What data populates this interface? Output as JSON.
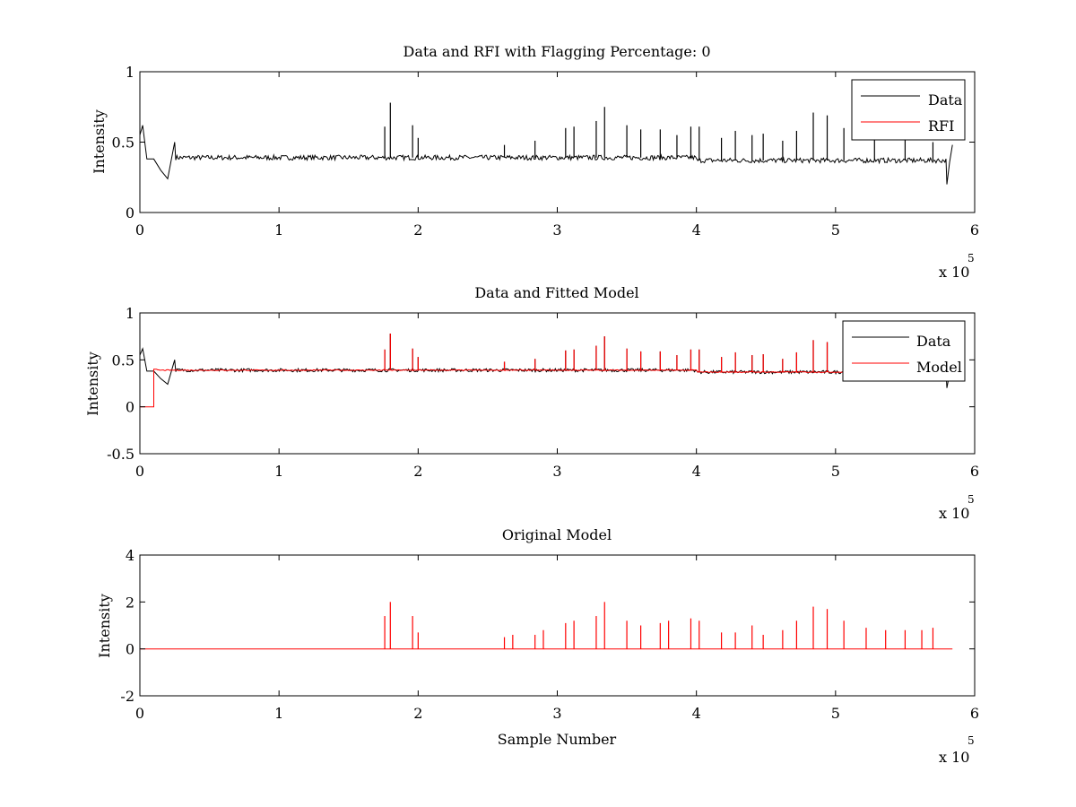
{
  "figure": {
    "background": "#ffffff",
    "axis_color": "#000000"
  },
  "chart_data": [
    {
      "type": "line",
      "title": "Data and RFI with Flagging Percentage: 0",
      "xlabel": "",
      "ylabel": "Intensity",
      "xlim": [
        0,
        600000
      ],
      "ylim": [
        0,
        1
      ],
      "xticks": [
        "0",
        "1",
        "2",
        "3",
        "4",
        "5",
        "6"
      ],
      "yticks": [
        "0",
        "0.5",
        "1"
      ],
      "x_multiplier": {
        "base": "x 10",
        "exponent": "5"
      },
      "legend": {
        "position": "top-right",
        "entries": [
          "Data",
          "RFI"
        ]
      },
      "series": [
        {
          "name": "Data",
          "color": "#000000",
          "baseline": 0.39,
          "x": [
            0,
            2000,
            5000,
            10000,
            15000,
            20000,
            25000,
            580000,
            582000,
            584000
          ],
          "y": [
            0.55,
            0.62,
            0.38,
            0.38,
            0.3,
            0.24,
            0.5,
            0.2,
            0.36,
            0.48
          ],
          "peaks": [
            [
              176000,
              0.61
            ],
            [
              180000,
              0.78
            ],
            [
              196000,
              0.62
            ],
            [
              200000,
              0.53
            ],
            [
              262000,
              0.48
            ],
            [
              284000,
              0.51
            ],
            [
              306000,
              0.6
            ],
            [
              312000,
              0.61
            ],
            [
              328000,
              0.65
            ],
            [
              334000,
              0.75
            ],
            [
              350000,
              0.62
            ],
            [
              360000,
              0.59
            ],
            [
              374000,
              0.59
            ],
            [
              386000,
              0.55
            ],
            [
              396000,
              0.61
            ],
            [
              402000,
              0.61
            ],
            [
              418000,
              0.53
            ],
            [
              428000,
              0.58
            ],
            [
              440000,
              0.55
            ],
            [
              448000,
              0.56
            ],
            [
              462000,
              0.51
            ],
            [
              472000,
              0.58
            ],
            [
              484000,
              0.71
            ],
            [
              494000,
              0.69
            ],
            [
              506000,
              0.6
            ],
            [
              528000,
              0.53
            ],
            [
              550000,
              0.52
            ],
            [
              570000,
              0.5
            ]
          ]
        },
        {
          "name": "RFI",
          "color": "#ff0000",
          "x": [],
          "y": []
        }
      ]
    },
    {
      "type": "line",
      "title": "Data and Fitted Model",
      "xlabel": "",
      "ylabel": "Intensity",
      "xlim": [
        0,
        600000
      ],
      "ylim": [
        -0.5,
        1
      ],
      "xticks": [
        "0",
        "1",
        "2",
        "3",
        "4",
        "5",
        "6"
      ],
      "yticks": [
        "-0.5",
        "0",
        "0.5",
        "1"
      ],
      "x_multiplier": {
        "base": "x 10",
        "exponent": "5"
      },
      "legend": {
        "position": "top-right",
        "entries": [
          "Data",
          "Model"
        ]
      },
      "series": [
        {
          "name": "Data",
          "color": "#000000",
          "baseline": 0.39,
          "x": [
            0,
            2000,
            5000,
            10000,
            15000,
            20000,
            25000,
            580000,
            582000,
            584000
          ],
          "y": [
            0.55,
            0.62,
            0.38,
            0.38,
            0.3,
            0.24,
            0.5,
            0.2,
            0.36,
            0.48
          ],
          "peaks": [
            [
              176000,
              0.61
            ],
            [
              180000,
              0.78
            ],
            [
              196000,
              0.62
            ],
            [
              200000,
              0.53
            ],
            [
              262000,
              0.48
            ],
            [
              284000,
              0.51
            ],
            [
              306000,
              0.6
            ],
            [
              312000,
              0.61
            ],
            [
              328000,
              0.65
            ],
            [
              334000,
              0.75
            ],
            [
              350000,
              0.62
            ],
            [
              360000,
              0.59
            ],
            [
              374000,
              0.59
            ],
            [
              386000,
              0.55
            ],
            [
              396000,
              0.61
            ],
            [
              402000,
              0.61
            ],
            [
              418000,
              0.53
            ],
            [
              428000,
              0.58
            ],
            [
              440000,
              0.55
            ],
            [
              448000,
              0.56
            ],
            [
              462000,
              0.51
            ],
            [
              472000,
              0.58
            ],
            [
              484000,
              0.71
            ],
            [
              494000,
              0.69
            ],
            [
              506000,
              0.6
            ],
            [
              528000,
              0.53
            ],
            [
              550000,
              0.52
            ],
            [
              570000,
              0.5
            ]
          ]
        },
        {
          "name": "Model",
          "color": "#ff0000",
          "baseline": 0.39,
          "x": [
            0,
            10000,
            10000,
            12000
          ],
          "y": [
            0.0,
            0.0,
            0.4,
            0.4
          ],
          "peaks": [
            [
              176000,
              0.61
            ],
            [
              180000,
              0.78
            ],
            [
              196000,
              0.62
            ],
            [
              200000,
              0.53
            ],
            [
              262000,
              0.48
            ],
            [
              284000,
              0.51
            ],
            [
              306000,
              0.6
            ],
            [
              312000,
              0.61
            ],
            [
              328000,
              0.65
            ],
            [
              334000,
              0.75
            ],
            [
              350000,
              0.62
            ],
            [
              360000,
              0.59
            ],
            [
              374000,
              0.59
            ],
            [
              386000,
              0.55
            ],
            [
              396000,
              0.61
            ],
            [
              402000,
              0.61
            ],
            [
              418000,
              0.53
            ],
            [
              428000,
              0.58
            ],
            [
              440000,
              0.55
            ],
            [
              448000,
              0.56
            ],
            [
              462000,
              0.51
            ],
            [
              472000,
              0.58
            ],
            [
              484000,
              0.71
            ],
            [
              494000,
              0.69
            ],
            [
              506000,
              0.6
            ],
            [
              528000,
              0.53
            ],
            [
              550000,
              0.52
            ],
            [
              570000,
              0.5
            ]
          ]
        }
      ]
    },
    {
      "type": "line",
      "title": "Original Model",
      "xlabel": "Sample Number",
      "ylabel": "Intensity",
      "xlim": [
        0,
        600000
      ],
      "ylim": [
        -2,
        4
      ],
      "xticks": [
        "0",
        "1",
        "2",
        "3",
        "4",
        "5",
        "6"
      ],
      "yticks": [
        "-2",
        "0",
        "2",
        "4"
      ],
      "x_multiplier": {
        "base": "x 10",
        "exponent": "5"
      },
      "series": [
        {
          "name": "",
          "color": "#ff0000",
          "baseline": 0.0,
          "x": [
            0,
            584000
          ],
          "y": [
            0.0,
            0.0
          ],
          "peaks": [
            [
              176000,
              1.4
            ],
            [
              180000,
              2.0
            ],
            [
              196000,
              1.4
            ],
            [
              200000,
              0.7
            ],
            [
              262000,
              0.5
            ],
            [
              268000,
              0.6
            ],
            [
              284000,
              0.6
            ],
            [
              290000,
              0.8
            ],
            [
              306000,
              1.1
            ],
            [
              312000,
              1.2
            ],
            [
              328000,
              1.4
            ],
            [
              334000,
              2.0
            ],
            [
              350000,
              1.2
            ],
            [
              360000,
              1.0
            ],
            [
              374000,
              1.1
            ],
            [
              380000,
              1.2
            ],
            [
              396000,
              1.3
            ],
            [
              402000,
              1.2
            ],
            [
              418000,
              0.7
            ],
            [
              428000,
              0.7
            ],
            [
              440000,
              1.0
            ],
            [
              448000,
              0.6
            ],
            [
              462000,
              0.8
            ],
            [
              472000,
              1.2
            ],
            [
              484000,
              1.8
            ],
            [
              494000,
              1.7
            ],
            [
              506000,
              1.2
            ],
            [
              522000,
              0.9
            ],
            [
              536000,
              0.8
            ],
            [
              550000,
              0.8
            ],
            [
              562000,
              0.8
            ],
            [
              570000,
              0.9
            ]
          ]
        }
      ]
    }
  ]
}
